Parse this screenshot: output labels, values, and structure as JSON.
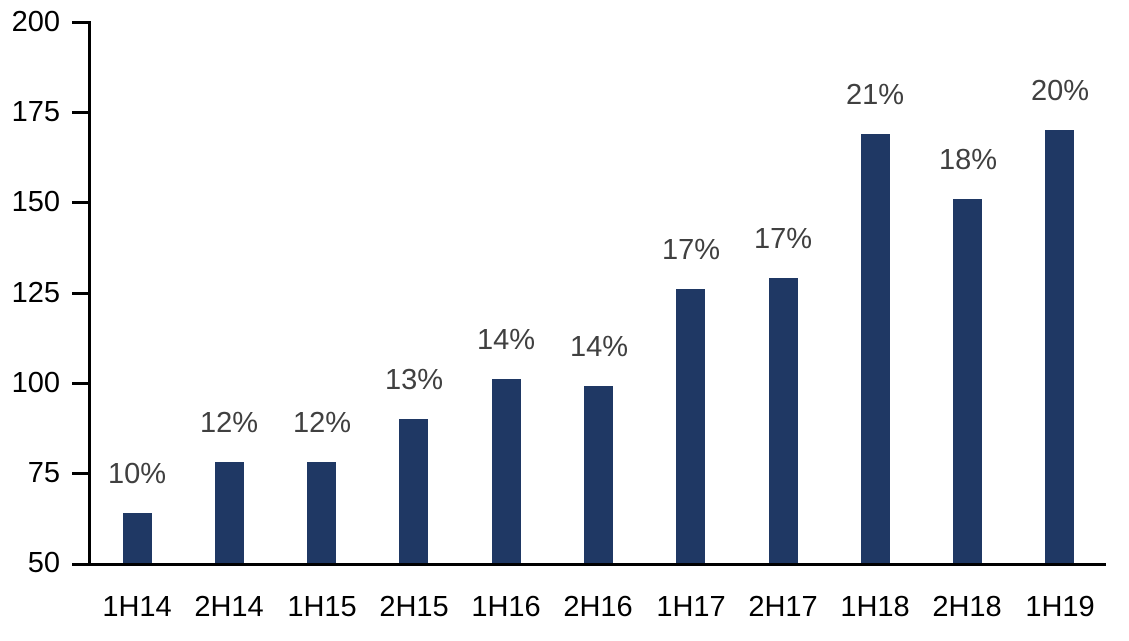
{
  "chart_data": {
    "type": "bar",
    "categories": [
      "1H14",
      "2H14",
      "1H15",
      "2H15",
      "1H16",
      "2H16",
      "1H17",
      "2H17",
      "1H18",
      "2H18",
      "1H19"
    ],
    "values": [
      64,
      78,
      78,
      90,
      101,
      99,
      126,
      129,
      169,
      151,
      170
    ],
    "data_labels": [
      "10%",
      "12%",
      "12%",
      "13%",
      "14%",
      "14%",
      "17%",
      "17%",
      "21%",
      "18%",
      "20%"
    ],
    "title": "",
    "xlabel": "",
    "ylabel": "",
    "ylim": [
      50,
      200
    ],
    "yticks": [
      50,
      75,
      100,
      125,
      150,
      175,
      200
    ],
    "grid": false,
    "legend": "none",
    "colors": {
      "bar_fill": "#1F3864",
      "data_label": "#404040",
      "axis": "#000000",
      "tick_label": "#000000",
      "background": "#ffffff"
    }
  }
}
